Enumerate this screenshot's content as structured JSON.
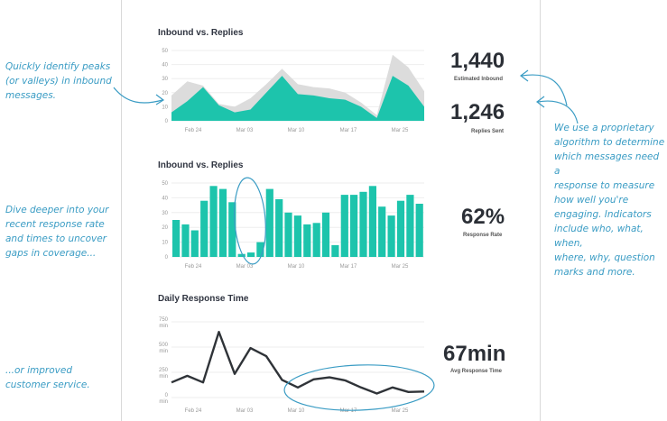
{
  "annotations": {
    "peaks": "Quickly identify peaks\n(or valleys) in inbound\nmessages.",
    "proprietary": "We use a proprietary\nalgorithm to determine\nwhich messages need a\nresponse to measure\nhow well you're\nengaging. Indicators\ninclude who, what, when,\nwhere, why, question\nmarks and more.",
    "dive": "Dive deeper into your\nrecent response rate\nand times to uncover\ngaps in coverage...",
    "improved": "...or improved\ncustomer service."
  },
  "colors": {
    "teal": "#1dc4ac",
    "grey": "#dcdcdc",
    "line": "#2f3338",
    "annotation": "#3a9cc4"
  },
  "stats": {
    "inbound_value": "1,440",
    "inbound_label": "Estimated Inbound",
    "replies_value": "1,246",
    "replies_label": "Replies Sent",
    "rate_value": "62%",
    "rate_label": "Response Rate",
    "time_value": "67min",
    "time_label": "Avg Response Time"
  },
  "chart_data": [
    {
      "type": "area",
      "title": "Inbound vs. Replies",
      "x_ticks": [
        "Feb 24",
        "Mar 03",
        "Mar 10",
        "Mar 17",
        "Mar 25"
      ],
      "y_ticks": [
        "50",
        "40",
        "30",
        "20",
        "10",
        "0"
      ],
      "ylim": [
        0,
        50
      ],
      "series": [
        {
          "values": [
            18,
            28,
            25,
            12,
            10,
            16,
            26,
            37,
            26,
            24,
            23,
            20,
            13,
            4,
            47,
            38,
            21
          ]
        },
        {
          "values": [
            6,
            14,
            24,
            11,
            6,
            8,
            20,
            32,
            19,
            18,
            16,
            15,
            10,
            2,
            32,
            25,
            10
          ]
        }
      ]
    },
    {
      "type": "bar",
      "title": "Inbound vs. Replies",
      "x_ticks": [
        "Feb 24",
        "Mar 03",
        "Mar 10",
        "Mar 17",
        "Mar 25"
      ],
      "y_ticks": [
        "50",
        "40",
        "30",
        "20",
        "10",
        "0"
      ],
      "ylim": [
        0,
        50
      ],
      "values": [
        25,
        22,
        18,
        38,
        48,
        46,
        37,
        2,
        3,
        10,
        46,
        39,
        30,
        28,
        22,
        23,
        30,
        8,
        42,
        42,
        44,
        48,
        34,
        28,
        38,
        42,
        36
      ]
    },
    {
      "type": "line",
      "title": "Daily Response Time",
      "x_ticks": [
        "Feb 24",
        "Mar 03",
        "Mar 10",
        "Mar 17",
        "Mar 25"
      ],
      "y_ticks": [
        "750\nmin",
        "500\nmin",
        "250\nmin",
        "0\nmin"
      ],
      "ylim": [
        -50,
        750
      ],
      "values": [
        150,
        215,
        150,
        650,
        235,
        490,
        410,
        175,
        100,
        180,
        200,
        170,
        100,
        40,
        100,
        55,
        60
      ]
    }
  ]
}
